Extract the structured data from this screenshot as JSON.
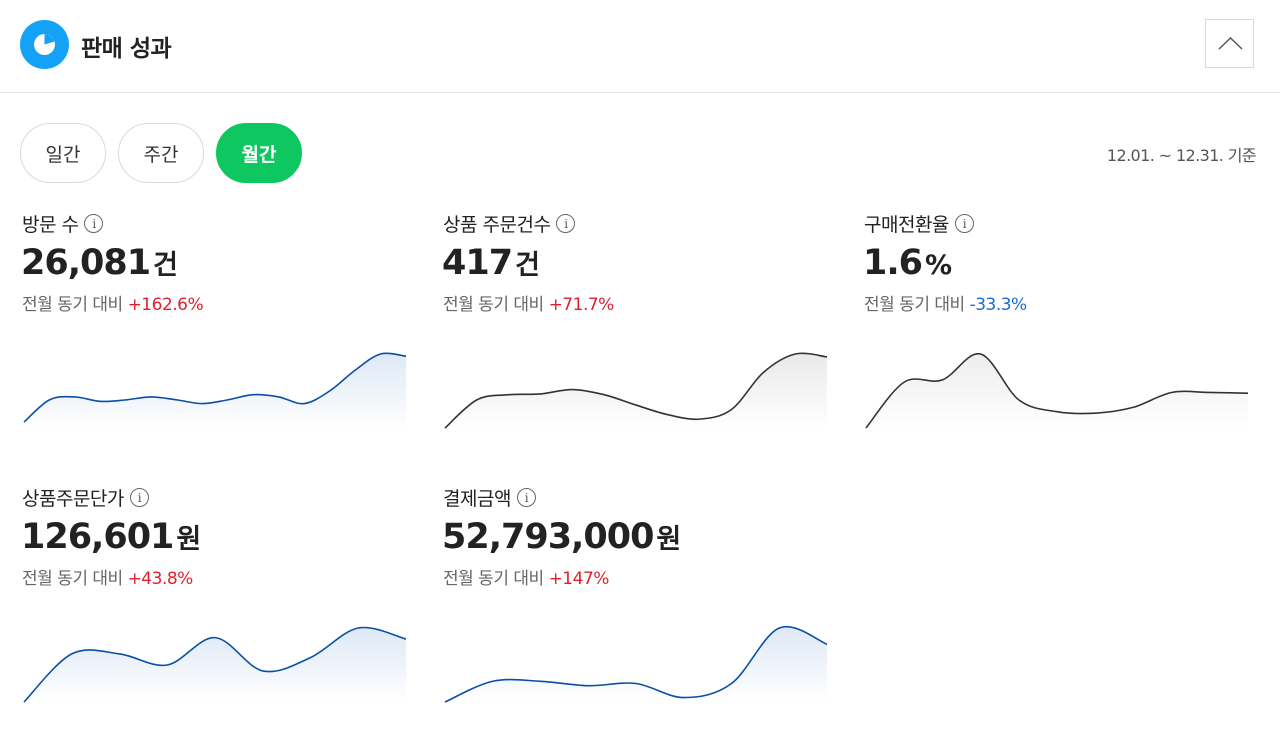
{
  "header": {
    "title": "판매 성과",
    "logo_icon": "pie-chart-icon",
    "collapse_icon": "chevron-up-icon"
  },
  "tabs": [
    {
      "label": "일간",
      "active": false
    },
    {
      "label": "주간",
      "active": false
    },
    {
      "label": "월간",
      "active": true
    }
  ],
  "date_range": "12.01. ~ 12.31. 기준",
  "colors": {
    "accent_green": "#0ec760",
    "logo_blue": "#13a2f5",
    "increase": "#e0212d",
    "decrease": "#1c6bd6",
    "line_blue": "#0a4fa6"
  },
  "metrics": [
    {
      "label": "방문 수",
      "value": "26,081",
      "unit": "건",
      "compare_label": "전월 동기 대비",
      "change": "+162.6%",
      "direction": "up",
      "trend": [
        0.08,
        0.38,
        0.42,
        0.36,
        0.38,
        0.42,
        0.38,
        0.33,
        0.38,
        0.45,
        0.42,
        0.33,
        0.5,
        0.78,
        1.0,
        0.97
      ],
      "line_color": "#0a4fa6",
      "fill_color": "#dce7f5"
    },
    {
      "label": "상품 주문건수",
      "value": "417",
      "unit": "건",
      "compare_label": "전월 동기 대비",
      "change": "+71.7%",
      "direction": "up",
      "trend": [
        0.0,
        0.38,
        0.45,
        0.46,
        0.52,
        0.45,
        0.31,
        0.18,
        0.12,
        0.25,
        0.75,
        1.0,
        0.96
      ],
      "line_color": "#333333",
      "fill_color": "#e8e8e8"
    },
    {
      "label": "구매전환율",
      "value": "1.6",
      "unit": "%",
      "compare_label": "전월 동기 대비",
      "change": "-33.3%",
      "direction": "down",
      "trend": [
        0.0,
        0.62,
        0.65,
        1.0,
        0.38,
        0.22,
        0.2,
        0.28,
        0.48,
        0.48,
        0.47
      ],
      "line_color": "#333333",
      "fill_color": "#ececec"
    },
    {
      "label": "상품주문단가",
      "value": "126,601",
      "unit": "원",
      "compare_label": "전월 동기 대비",
      "change": "+43.8%",
      "direction": "up",
      "trend": [
        0.0,
        0.65,
        0.65,
        0.5,
        0.87,
        0.42,
        0.6,
        1.0,
        0.85
      ],
      "line_color": "#0a4fa6",
      "fill_color": "#dce7f5"
    },
    {
      "label": "결제금액",
      "value": "52,793,000",
      "unit": "원",
      "compare_label": "전월 동기 대비",
      "change": "+147%",
      "direction": "up",
      "trend": [
        0.0,
        0.28,
        0.28,
        0.22,
        0.25,
        0.06,
        0.25,
        1.0,
        0.78
      ],
      "line_color": "#0a4fa6",
      "fill_color": "#dce7f5"
    }
  ]
}
